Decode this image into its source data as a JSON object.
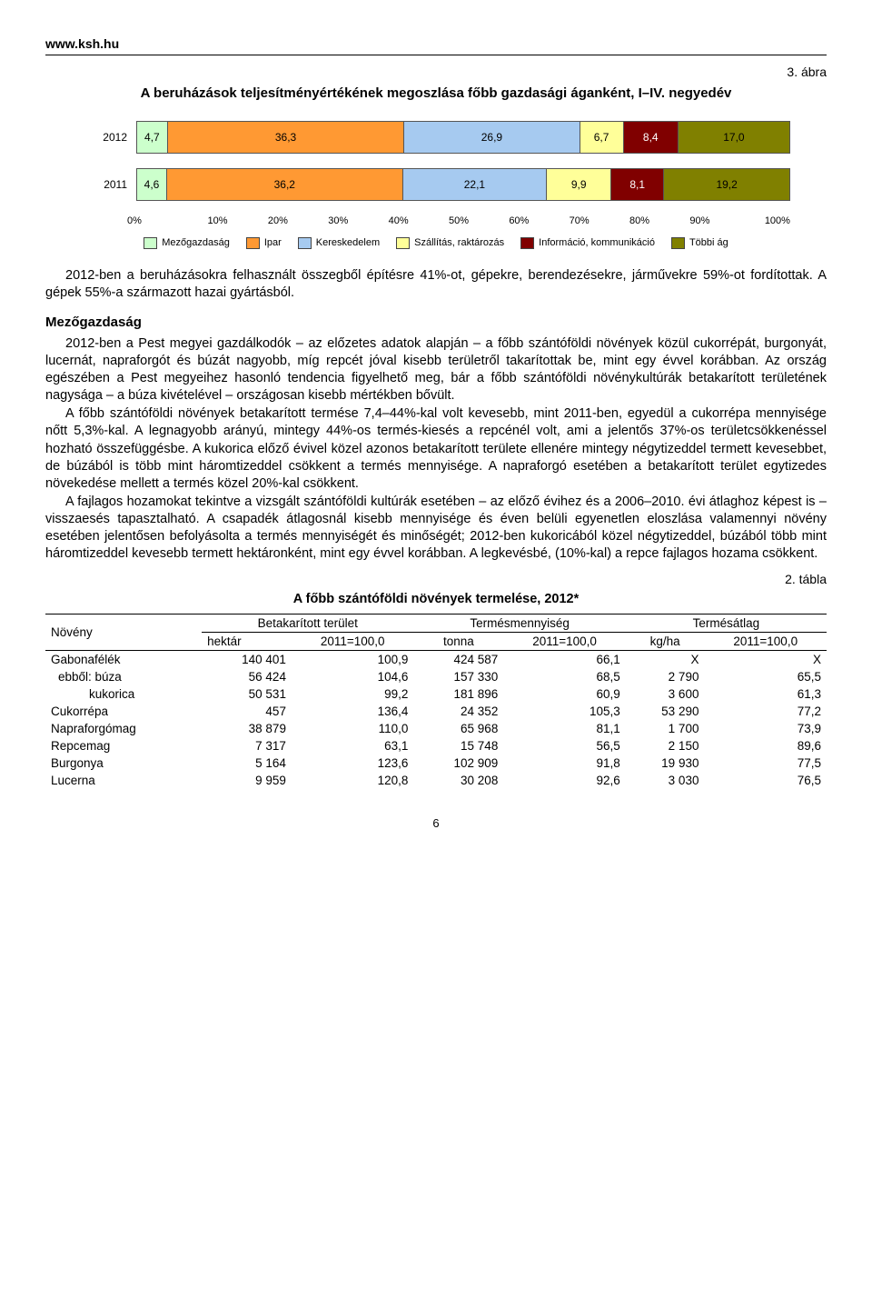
{
  "header": {
    "url": "www.ksh.hu"
  },
  "figure": {
    "label": "3. ábra",
    "title": "A beruházások teljesítményértékének megoszlása főbb gazdasági áganként, I–IV. negyedév",
    "type": "stacked-bar-horizontal",
    "categories": [
      "Mezőgazdaság",
      "Ipar",
      "Kereskedelem",
      "Szállítás, raktározás",
      "Információ, kommunikáció",
      "Többi ág"
    ],
    "colors": [
      "#ccffcc",
      "#ff9933",
      "#a6caf0",
      "#ffff99",
      "#800000",
      "#808000"
    ],
    "series": [
      {
        "year": "2012",
        "values": [
          4.7,
          36.3,
          26.9,
          6.7,
          8.4,
          17.0
        ]
      },
      {
        "year": "2011",
        "values": [
          4.6,
          36.2,
          22.1,
          9.9,
          8.1,
          19.2
        ]
      }
    ],
    "xaxis": {
      "ticks": [
        "0%",
        "10%",
        "20%",
        "30%",
        "40%",
        "50%",
        "60%",
        "70%",
        "80%",
        "90%",
        "100%"
      ],
      "xlim": [
        0,
        100
      ]
    },
    "background_color": "#ffffff",
    "label_fontsize": 12,
    "legend_fontsize": 11
  },
  "para": {
    "p1": "2012-ben a beruházásokra felhasznált összegből építésre 41%-ot, gépekre, berendezésekre, járművekre 59%-ot fordítottak. A gépek 55%-a származott hazai gyártásból.",
    "h_mezo": "Mezőgazdaság",
    "p2": "2012-ben a Pest megyei gazdálkodók – az előzetes adatok alapján – a főbb szántóföldi növények közül cukorrépát, burgonyát, lucernát, napraforgót és búzát nagyobb, míg repcét jóval kisebb területről takarítottak be, mint egy évvel korábban. Az ország egészében a Pest megyeihez hasonló tendencia figyelhető meg, bár a főbb szántóföldi növénykultúrák betakarított területének nagysága – a búza kivételével – országosan kisebb mértékben bővült.",
    "p3": "A főbb szántóföldi növények betakarított termése 7,4–44%-kal volt kevesebb, mint 2011-ben, egyedül a cukorrépa mennyisége nőtt 5,3%-kal. A legnagyobb arányú, mintegy 44%-os termés-kiesés a repcénél volt, ami a jelentős 37%-os területcsökkenéssel hozható összefüggésbe. A kukorica előző évivel közel azonos betakarított területe ellenére mintegy négytizeddel termett kevesebbet, de búzából is több mint háromtizeddel csökkent a termés mennyisége. A napraforgó esetében a betakarított terület egytizedes növekedése mellett a termés közel 20%-kal csökkent.",
    "p4": "A fajlagos hozamokat tekintve a vizsgált szántóföldi kultúrák esetében – az előző évihez és a 2006–2010. évi átlaghoz képest is – visszaesés tapasztalható. A csapadék átlagosnál kisebb mennyisége és éven belüli egyenetlen eloszlása valamennyi növény esetében jelentősen befolyásolta a termés mennyiségét és minőségét; 2012-ben kukoricából közel négytizeddel, búzából több mint háromtizeddel kevesebb termett hektáronként, mint egy évvel korábban. A legkevésbé, (10%-kal) a repce fajlagos hozama csökkent."
  },
  "table": {
    "label": "2. tábla",
    "title": "A főbb szántóföldi növények termelése, 2012*",
    "head_row1": [
      "Növény",
      "Betakarított terület",
      "Termésmennyiség",
      "Termésátlag"
    ],
    "head_row2": [
      "hektár",
      "2011=100,0",
      "tonna",
      "2011=100,0",
      "kg/ha",
      "2011=100,0"
    ],
    "rows": [
      {
        "name": "Gabonafélék",
        "indent": 0,
        "c": [
          "140 401",
          "100,9",
          "424 587",
          "66,1",
          "X",
          "X"
        ]
      },
      {
        "name": "ebből: búza",
        "indent": 1,
        "c": [
          "56 424",
          "104,6",
          "157 330",
          "68,5",
          "2 790",
          "65,5"
        ]
      },
      {
        "name": "kukorica",
        "indent": 2,
        "c": [
          "50 531",
          "99,2",
          "181 896",
          "60,9",
          "3 600",
          "61,3"
        ]
      },
      {
        "name": "Cukorrépa",
        "indent": 0,
        "c": [
          "457",
          "136,4",
          "24 352",
          "105,3",
          "53 290",
          "77,2"
        ]
      },
      {
        "name": "Napraforgómag",
        "indent": 0,
        "c": [
          "38 879",
          "110,0",
          "65 968",
          "81,1",
          "1 700",
          "73,9"
        ]
      },
      {
        "name": "Repcemag",
        "indent": 0,
        "c": [
          "7 317",
          "63,1",
          "15 748",
          "56,5",
          "2 150",
          "89,6"
        ]
      },
      {
        "name": "Burgonya",
        "indent": 0,
        "c": [
          "5 164",
          "123,6",
          "102 909",
          "91,8",
          "19 930",
          "77,5"
        ]
      },
      {
        "name": "Lucerna",
        "indent": 0,
        "c": [
          "9 959",
          "120,8",
          "30 208",
          "92,6",
          "3 030",
          "76,5"
        ]
      }
    ]
  },
  "page_number": "6"
}
